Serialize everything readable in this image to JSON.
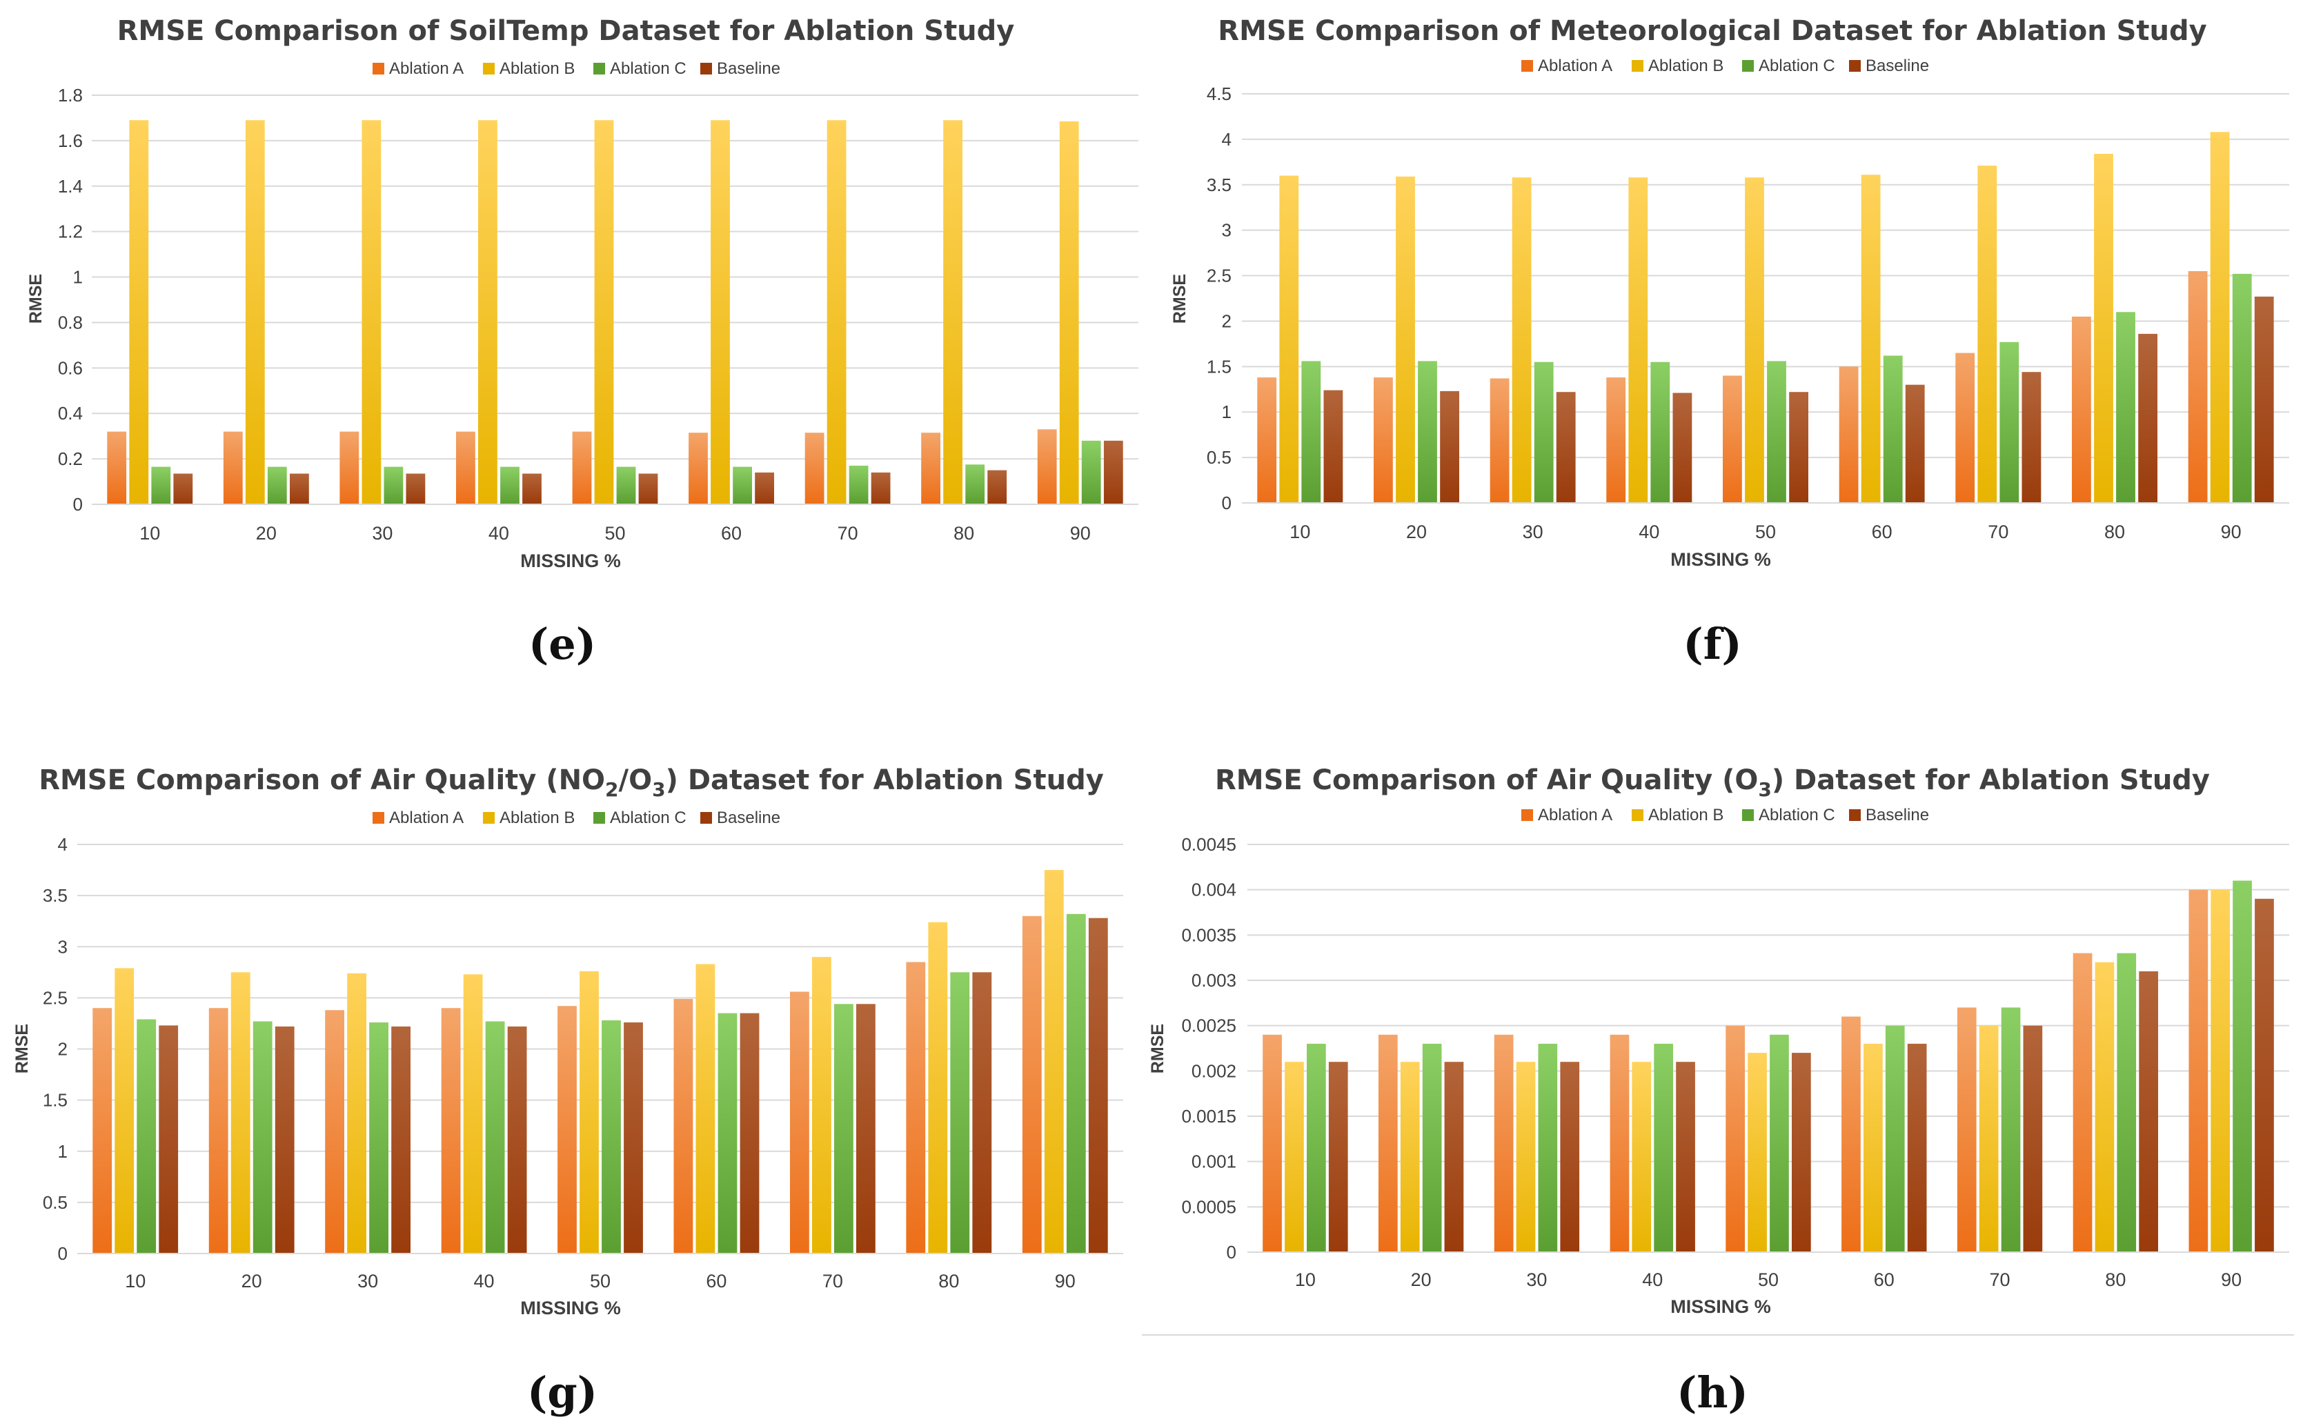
{
  "colors": {
    "series": [
      {
        "top": "#f4a56a",
        "bottom": "#ed6e17"
      },
      {
        "top": "#ffd35c",
        "bottom": "#e8b400"
      },
      {
        "top": "#8ccf64",
        "bottom": "#5b9f32"
      },
      {
        "top": "#b3653a",
        "bottom": "#9a3b0b"
      }
    ]
  },
  "chart_data": [
    {
      "type": "bar",
      "caption": "(e)",
      "title": "RMSE Comparison of SoilTemp Dataset for Ablation Study",
      "xlabel": "MISSING %",
      "ylabel": "RMSE",
      "legend_position": "top",
      "ylim": [
        0,
        1.8
      ],
      "yticks": [
        "0",
        "0.2",
        "0.4",
        "0.6",
        "0.8",
        "1",
        "1.2",
        "1.4",
        "1.6",
        "1.8"
      ],
      "categories": [
        "10",
        "20",
        "30",
        "40",
        "50",
        "60",
        "70",
        "80",
        "90"
      ],
      "series": [
        {
          "name": "Ablation A",
          "values": [
            0.32,
            0.32,
            0.32,
            0.32,
            0.32,
            0.315,
            0.315,
            0.315,
            0.33
          ]
        },
        {
          "name": "Ablation B",
          "values": [
            1.69,
            1.69,
            1.69,
            1.69,
            1.69,
            1.69,
            1.69,
            1.69,
            1.685
          ]
        },
        {
          "name": "Ablation C",
          "values": [
            0.165,
            0.165,
            0.165,
            0.165,
            0.165,
            0.165,
            0.17,
            0.175,
            0.28
          ]
        },
        {
          "name": "Baseline",
          "values": [
            0.135,
            0.135,
            0.135,
            0.135,
            0.135,
            0.14,
            0.14,
            0.15,
            0.28
          ]
        }
      ]
    },
    {
      "type": "bar",
      "caption": "(f)",
      "title": "RMSE Comparison of Meteorological Dataset for Ablation Study",
      "xlabel": "MISSING %",
      "ylabel": "RMSE",
      "legend_position": "top",
      "ylim": [
        0,
        4.5
      ],
      "yticks": [
        "0",
        "0.5",
        "1",
        "1.5",
        "2",
        "2.5",
        "3",
        "3.5",
        "4",
        "4.5"
      ],
      "categories": [
        "10",
        "20",
        "30",
        "40",
        "50",
        "60",
        "70",
        "80",
        "90"
      ],
      "series": [
        {
          "name": "Ablation A",
          "values": [
            1.38,
            1.38,
            1.37,
            1.38,
            1.4,
            1.5,
            1.65,
            2.05,
            2.55
          ]
        },
        {
          "name": "Ablation B",
          "values": [
            3.6,
            3.59,
            3.58,
            3.58,
            3.58,
            3.61,
            3.71,
            3.84,
            4.08
          ]
        },
        {
          "name": "Ablation C",
          "values": [
            1.56,
            1.56,
            1.55,
            1.55,
            1.56,
            1.62,
            1.77,
            2.1,
            2.52
          ]
        },
        {
          "name": "Baseline",
          "values": [
            1.24,
            1.23,
            1.22,
            1.21,
            1.22,
            1.3,
            1.44,
            1.86,
            2.27
          ]
        }
      ]
    },
    {
      "type": "bar",
      "caption": "(g)",
      "title_main": "RMSE Comparison of Air Quality (NO",
      "title_sub1": "2",
      "title_mid": "/O",
      "title_sub2": "3",
      "title_end": ") Dataset for Ablation Study",
      "xlabel": "MISSING %",
      "ylabel": "RMSE",
      "legend_position": "top",
      "ylim": [
        0,
        4
      ],
      "yticks": [
        "0",
        "0.5",
        "1",
        "1.5",
        "2",
        "2.5",
        "3",
        "3.5",
        "4"
      ],
      "categories": [
        "10",
        "20",
        "30",
        "40",
        "50",
        "60",
        "70",
        "80",
        "90"
      ],
      "series": [
        {
          "name": "Ablation A",
          "values": [
            2.4,
            2.4,
            2.38,
            2.4,
            2.42,
            2.49,
            2.56,
            2.85,
            3.3
          ]
        },
        {
          "name": "Ablation B",
          "values": [
            2.79,
            2.75,
            2.74,
            2.73,
            2.76,
            2.83,
            2.9,
            3.24,
            3.75
          ]
        },
        {
          "name": "Ablation C",
          "values": [
            2.29,
            2.27,
            2.26,
            2.27,
            2.28,
            2.35,
            2.44,
            2.75,
            3.32
          ]
        },
        {
          "name": "Baseline",
          "values": [
            2.23,
            2.22,
            2.22,
            2.22,
            2.26,
            2.35,
            2.44,
            2.75,
            3.28
          ]
        }
      ]
    },
    {
      "type": "bar",
      "caption": "(h)",
      "title_main": "RMSE Comparison of Air Quality (O",
      "title_sub1": "3",
      "title_end": ") Dataset for Ablation Study",
      "xlabel": "MISSING %",
      "ylabel": "RMSE",
      "legend_position": "top",
      "ylim": [
        0,
        0.0045
      ],
      "yticks": [
        "0",
        "0.0005",
        "0.001",
        "0.0015",
        "0.002",
        "0.0025",
        "0.003",
        "0.0035",
        "0.004",
        "0.0045"
      ],
      "categories": [
        "10",
        "20",
        "30",
        "40",
        "50",
        "60",
        "70",
        "80",
        "90"
      ],
      "series": [
        {
          "name": "Ablation A",
          "values": [
            0.0024,
            0.0024,
            0.0024,
            0.0024,
            0.0025,
            0.0026,
            0.0027,
            0.0033,
            0.004
          ]
        },
        {
          "name": "Ablation B",
          "values": [
            0.0021,
            0.0021,
            0.0021,
            0.0021,
            0.0022,
            0.0023,
            0.0025,
            0.0032,
            0.004
          ]
        },
        {
          "name": "Ablation C",
          "values": [
            0.0023,
            0.0023,
            0.0023,
            0.0023,
            0.0024,
            0.0025,
            0.0027,
            0.0033,
            0.0041
          ]
        },
        {
          "name": "Baseline",
          "values": [
            0.0021,
            0.0021,
            0.0021,
            0.0021,
            0.0022,
            0.0023,
            0.0025,
            0.0031,
            0.0039
          ]
        }
      ]
    }
  ]
}
